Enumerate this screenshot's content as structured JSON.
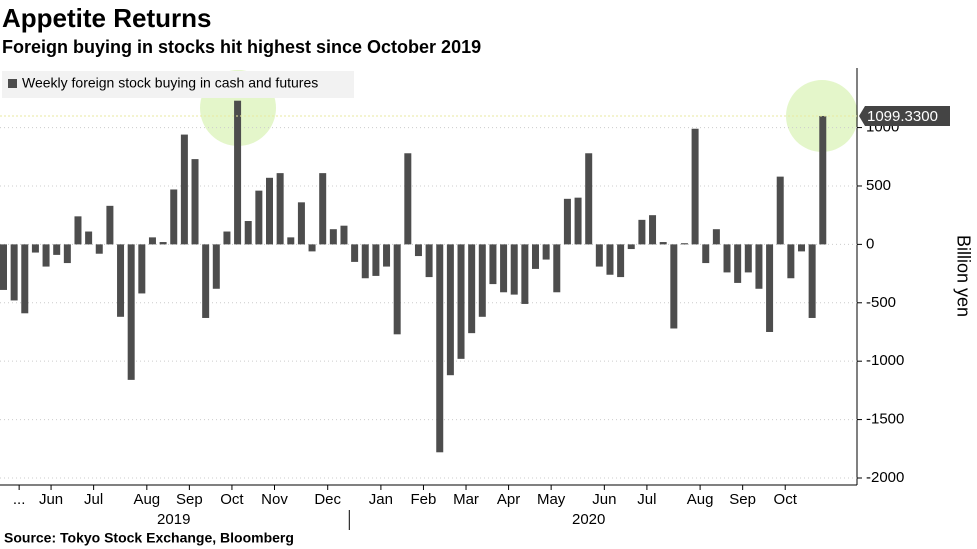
{
  "chart_data": {
    "type": "bar",
    "title": "Appetite Returns",
    "subtitle": "Foreign buying in stocks hit highest since October 2019",
    "source": "Source: Tokyo Stock Exchange, Bloomberg",
    "y_axis_label": "Billion yen",
    "series": [
      {
        "name": "Weekly foreign stock buying in cash and futures",
        "color": "#4d4d4d",
        "values": [
          -390,
          -480,
          -590,
          -70,
          -190,
          -90,
          -160,
          240,
          110,
          -80,
          330,
          -620,
          -1160,
          -420,
          60,
          20,
          470,
          940,
          730,
          -630,
          -380,
          110,
          1230,
          200,
          460,
          570,
          610,
          60,
          360,
          -60,
          610,
          130,
          160,
          -150,
          -290,
          -270,
          -190,
          -770,
          780,
          -100,
          -280,
          -1780,
          -1120,
          -980,
          -760,
          -620,
          -340,
          -410,
          -430,
          -510,
          -210,
          -130,
          -410,
          390,
          400,
          780,
          -190,
          -260,
          -280,
          -40,
          210,
          250,
          20,
          -720,
          10,
          990,
          -160,
          130,
          -240,
          -330,
          -240,
          -380,
          -750,
          580,
          -290,
          -60,
          -630,
          1099.33
        ],
        "value_labels": [
          null,
          null,
          null,
          null,
          null,
          null,
          null,
          null,
          null,
          null,
          null,
          null,
          null,
          null,
          null,
          null,
          null,
          null,
          null,
          null,
          null,
          null,
          null,
          null,
          null,
          null,
          null,
          null,
          null,
          null,
          null,
          null,
          null,
          null,
          null,
          null,
          null,
          null,
          null,
          null,
          null,
          null,
          null,
          null,
          null,
          null,
          null,
          null,
          null,
          null,
          null,
          null,
          null,
          null,
          null,
          null,
          null,
          null,
          null,
          null,
          null,
          null,
          null,
          null,
          null,
          null,
          null,
          null,
          null,
          null,
          null,
          null,
          null,
          null,
          null,
          null,
          null,
          "1099.3300"
        ]
      }
    ],
    "categories": [
      null,
      "...",
      null,
      null,
      "Jun",
      null,
      null,
      null,
      "Jul",
      null,
      null,
      null,
      null,
      "Aug",
      null,
      null,
      null,
      "Sep",
      null,
      null,
      null,
      "Oct",
      null,
      null,
      null,
      "Nov",
      null,
      null,
      null,
      null,
      "Dec",
      null,
      null,
      null,
      null,
      "Jan",
      null,
      null,
      null,
      "Feb",
      null,
      null,
      null,
      "Mar",
      null,
      null,
      null,
      "Apr",
      null,
      null,
      null,
      "May",
      null,
      null,
      null,
      null,
      "Jun",
      null,
      null,
      null,
      "Jul",
      null,
      null,
      null,
      null,
      "Aug",
      null,
      null,
      null,
      "Sep",
      null,
      null,
      null,
      "Oct",
      null,
      null,
      null,
      null
    ],
    "year_groups": [
      {
        "label": "2019",
        "start": 0,
        "end": 32
      },
      {
        "label": "2020",
        "start": 33,
        "end": 77
      }
    ],
    "ylim": [
      -2060,
      1510
    ],
    "yticks": [
      -2000,
      -1500,
      -1000,
      -500,
      0,
      500,
      1000
    ],
    "grid": true
  }
}
